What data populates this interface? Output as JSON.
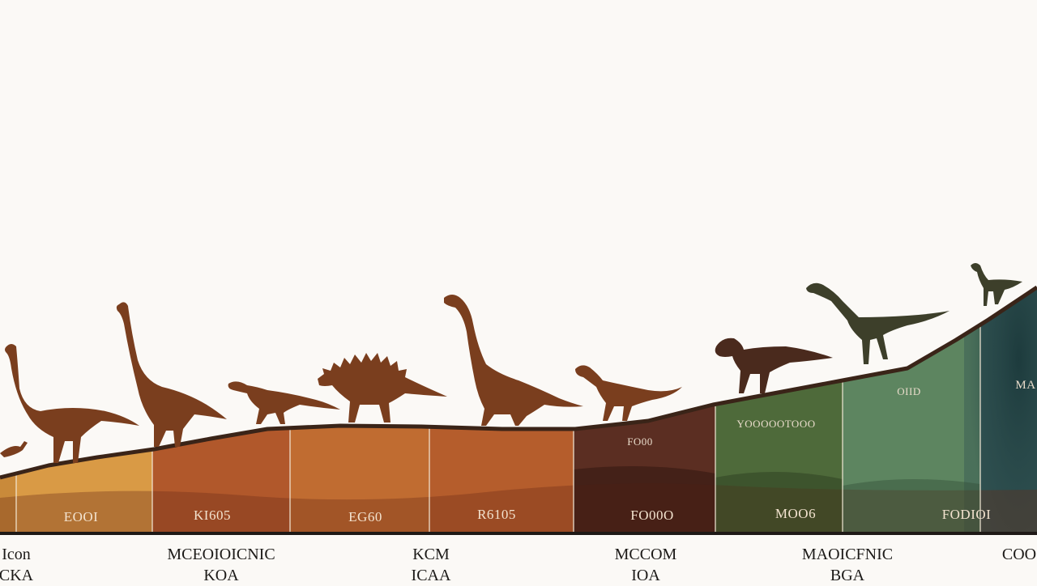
{
  "blocks": [
    {
      "bottom_label": "EOOI",
      "top_label": "",
      "color": "#d99a45"
    },
    {
      "bottom_label": "KI605",
      "top_label": "",
      "color": "#b1582b"
    },
    {
      "bottom_label": "EG60",
      "top_label": "",
      "color": "#c06c31"
    },
    {
      "bottom_label": "R6105",
      "top_label": "",
      "color": "#b55d2c"
    },
    {
      "bottom_label": "FO00O",
      "top_label": "FO00",
      "color": "#5b2e22"
    },
    {
      "bottom_label": "MOO6",
      "top_label": "YOOOOOTOOO",
      "color": "#4e6a3a"
    },
    {
      "bottom_label": "FODIOI",
      "top_label": "OIID",
      "color": "#5d8560"
    },
    {
      "bottom_label": "",
      "top_label": "MA",
      "color": "#2f4f50"
    }
  ],
  "eras": [
    {
      "line1": "Icon",
      "line2": "CKA"
    },
    {
      "line1": "MCEOIOICNIC",
      "line2": "KOA"
    },
    {
      "line1": "KCM",
      "line2": "ICAA"
    },
    {
      "line1": "MCCOM",
      "line2": "IOA"
    },
    {
      "line1": "MAOICFNIC",
      "line2": "BGA"
    },
    {
      "line1": "COO",
      "line2": ""
    }
  ],
  "colors": {
    "background": "#fbf9f6",
    "dino_brown": "#7a3e1e",
    "dino_green": "#3d3f2a",
    "ground_line": "#3a2418"
  },
  "icons": [
    "sauropod-silhouette",
    "theropod-silhouette",
    "stegosaurus-silhouette",
    "ornithomimid-silhouette"
  ]
}
